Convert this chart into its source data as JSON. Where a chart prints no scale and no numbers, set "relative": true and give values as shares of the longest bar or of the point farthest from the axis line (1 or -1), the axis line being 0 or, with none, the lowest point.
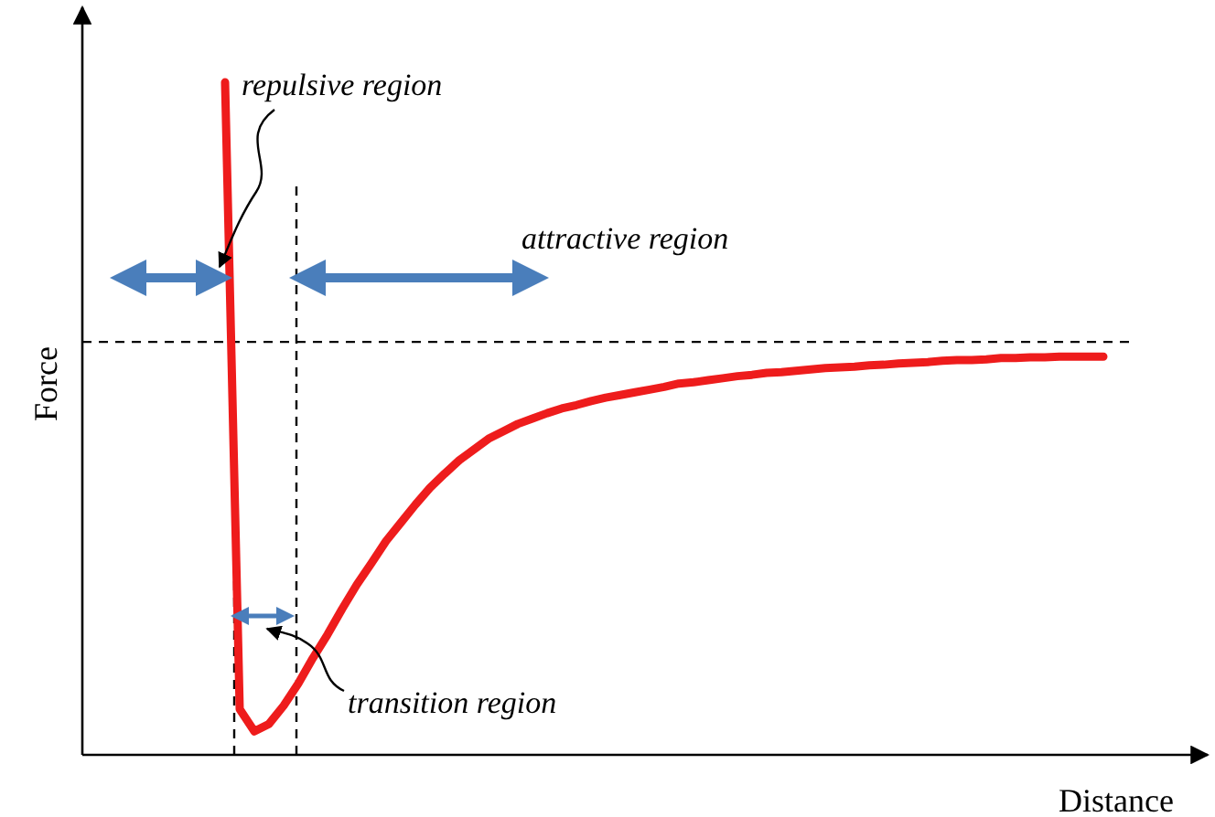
{
  "chart_data": {
    "type": "line",
    "relative": true,
    "xlabel": "Distance",
    "ylabel": "Force",
    "line_style": "solid",
    "categories": [
      null,
      null,
      null,
      null,
      null,
      null,
      null,
      null,
      null,
      null,
      null,
      null,
      null,
      null,
      null,
      null,
      null,
      null,
      null,
      null,
      null,
      null,
      null,
      null,
      null,
      null,
      null,
      null,
      null,
      null,
      null,
      null,
      null,
      null,
      null,
      null,
      null,
      null,
      null,
      null,
      null,
      null,
      null,
      null,
      null,
      null,
      null,
      null,
      null,
      null,
      null,
      null,
      null,
      null,
      null,
      null,
      null,
      null,
      null,
      null,
      null
    ],
    "series": [
      {
        "color": "#ee1c1c",
        "values": [
          1,
          0.068,
          0.035,
          0.046,
          0.073,
          0.106,
          0.144,
          0.179,
          0.217,
          0.253,
          0.285,
          0.318,
          0.345,
          0.372,
          0.397,
          0.418,
          0.438,
          0.454,
          0.47,
          0.481,
          0.492,
          0.5,
          0.508,
          0.515,
          0.52,
          0.526,
          0.531,
          0.535,
          0.539,
          0.543,
          0.547,
          0.552,
          0.554,
          0.557,
          0.56,
          0.563,
          0.565,
          0.568,
          0.569,
          0.571,
          0.573,
          0.575,
          0.576,
          0.577,
          0.579,
          0.58,
          0.582,
          0.583,
          0.584,
          0.586,
          0.587,
          0.587,
          0.588,
          0.59,
          0.59,
          0.591,
          0.591,
          0.592,
          0.592,
          0.592,
          0.592
        ]
      }
    ],
    "ref_lines": [
      {
        "axis": "y",
        "value": 0.614,
        "line_style": "dashed",
        "color": "#000000"
      }
    ],
    "annotations": [
      "repulsive region",
      "attractive region",
      "transition region"
    ]
  }
}
